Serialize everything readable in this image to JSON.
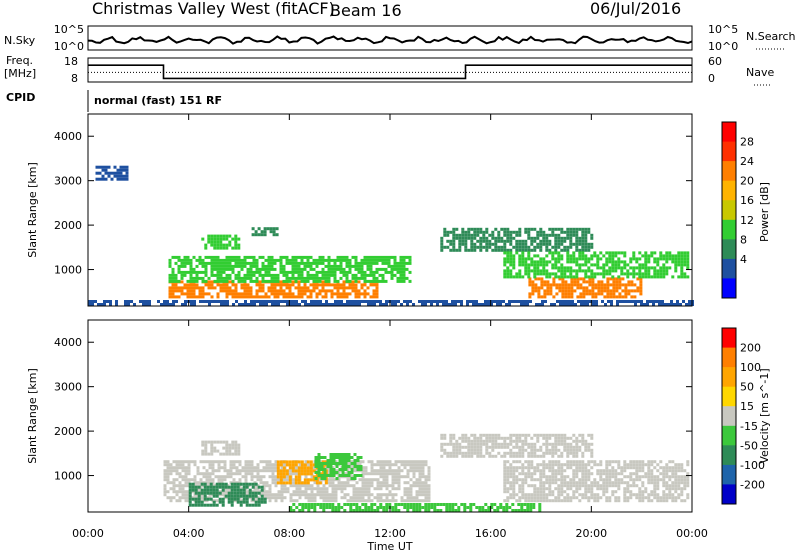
{
  "header": {
    "title": "Christmas Valley West (fitACF)",
    "beam": "Beam 16",
    "date": "06/Jul/2016"
  },
  "nsky_panel": {
    "left_label": "N.Sky",
    "right_label": "N.Search",
    "y_ticks": [
      "10^5",
      "10^0"
    ],
    "right_ticks": [
      "10^5",
      "10^0"
    ]
  },
  "freq_panel": {
    "left_label_1": "Freq.",
    "left_label_2": "[MHz]",
    "y_ticks": [
      "18",
      "8"
    ],
    "right_ticks": [
      "60",
      "0"
    ],
    "right_label": "Nave",
    "cpid_label": "CPID",
    "cpid_value": "normal (fast) 151 RF",
    "freq_series": [
      {
        "t": 0,
        "v": 15
      },
      {
        "t": 3,
        "v": 15
      },
      {
        "t": 3,
        "v": 9.5
      },
      {
        "t": 15,
        "v": 9.5
      },
      {
        "t": 15,
        "v": 15
      },
      {
        "t": 24,
        "v": 15
      }
    ],
    "nave_level": 0.4
  },
  "chart_data": [
    {
      "type": "heatmap",
      "ylabel": "Slant Range [km]",
      "y_ticks": [
        "4000",
        "3000",
        "2000",
        "1000"
      ],
      "y_tick_values": [
        4000,
        3000,
        2000,
        1000
      ],
      "ylim": [
        180,
        4500
      ],
      "xlim": [
        0,
        24
      ],
      "colorbar": {
        "label": "Power [dB]",
        "ticks": [
          "28",
          "24",
          "20",
          "16",
          "12",
          "8",
          "4"
        ],
        "colors": [
          "#0000ff",
          "#1e50a0",
          "#2e8b57",
          "#32cd32",
          "#c8c800",
          "#ffb300",
          "#ff7f00",
          "#ff3000",
          "#ff0000"
        ]
      },
      "regions": [
        {
          "t0": 3.2,
          "t1": 11.5,
          "r0": 350,
          "r1": 700,
          "value": 26
        },
        {
          "t0": 3.2,
          "t1": 12.8,
          "r0": 700,
          "r1": 1300,
          "value": 14
        },
        {
          "t0": 4.5,
          "t1": 6.0,
          "r0": 1450,
          "r1": 1750,
          "value": 14
        },
        {
          "t0": 6.5,
          "t1": 7.5,
          "r0": 1750,
          "r1": 1950,
          "value": 12
        },
        {
          "t0": 14.0,
          "t1": 20.0,
          "r0": 1400,
          "r1": 1900,
          "value": 10
        },
        {
          "t0": 17.5,
          "t1": 22.0,
          "r0": 350,
          "r1": 800,
          "value": 26
        },
        {
          "t0": 16.5,
          "t1": 23.8,
          "r0": 800,
          "r1": 1400,
          "value": 14
        },
        {
          "t0": 0.3,
          "t1": 1.6,
          "r0": 3000,
          "r1": 3300,
          "value": 6
        },
        {
          "t0": 0.0,
          "t1": 24.0,
          "r0": 180,
          "r1": 300,
          "value": 8
        }
      ]
    },
    {
      "type": "heatmap",
      "ylabel": "Slant Range [km]",
      "y_ticks": [
        "4000",
        "3000",
        "2000",
        "1000"
      ],
      "y_tick_values": [
        4000,
        3000,
        2000,
        1000
      ],
      "ylim": [
        180,
        4500
      ],
      "xlim": [
        0,
        24
      ],
      "colorbar": {
        "label": "Velocity [m s^-1]",
        "ticks": [
          "200",
          "100",
          "50",
          "15",
          "-15",
          "-50",
          "-100",
          "-200"
        ],
        "colors": [
          "#0000c8",
          "#1e64aa",
          "#2e8b57",
          "#3cc83c",
          "#c8c8c0",
          "#ffd700",
          "#ffa500",
          "#ff7f00",
          "#ff0000"
        ]
      },
      "regions": [
        {
          "t0": 3.0,
          "t1": 13.5,
          "r0": 400,
          "r1": 1300,
          "value": 0
        },
        {
          "t0": 4.5,
          "t1": 6.0,
          "r0": 1450,
          "r1": 1750,
          "value": 0
        },
        {
          "t0": 7.5,
          "t1": 9.5,
          "r0": 800,
          "r1": 1300,
          "value": 60
        },
        {
          "t0": 9.0,
          "t1": 10.8,
          "r0": 900,
          "r1": 1450,
          "value": -40
        },
        {
          "t0": 4.0,
          "t1": 7.0,
          "r0": 300,
          "r1": 800,
          "value": -70
        },
        {
          "t0": 14.0,
          "t1": 20.0,
          "r0": 1400,
          "r1": 1900,
          "value": 0
        },
        {
          "t0": 16.5,
          "t1": 23.8,
          "r0": 400,
          "r1": 1300,
          "value": 0
        },
        {
          "t0": 8.0,
          "t1": 18.0,
          "r0": 180,
          "r1": 350,
          "value": -40
        }
      ]
    }
  ],
  "x_axis": {
    "ticks": [
      "00:00",
      "04:00",
      "08:00",
      "12:00",
      "16:00",
      "20:00",
      "00:00"
    ],
    "tick_values": [
      0,
      4,
      8,
      12,
      16,
      20,
      24
    ],
    "label": "Time UT"
  }
}
